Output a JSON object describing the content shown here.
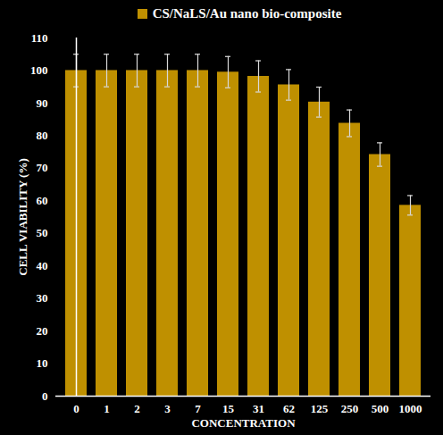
{
  "chart_data": {
    "type": "bar",
    "categories": [
      "0",
      "1",
      "2",
      "3",
      "7",
      "15",
      "31",
      "62",
      "125",
      "250",
      "500",
      "1000"
    ],
    "series": [
      {
        "name": "CS/NaLS/Au nano bio-composite",
        "color": "#bf9000",
        "values": [
          100,
          100,
          100,
          100,
          100,
          99.5,
          98.2,
          95.6,
          90.3,
          83.8,
          74.2,
          58.6
        ],
        "errors": [
          5,
          5,
          5,
          5,
          5,
          4.8,
          4.8,
          4.7,
          4.6,
          4.1,
          3.6,
          3.0
        ]
      }
    ],
    "x_label": "CONCENTRATION",
    "y_label": "CELL VIABILITY (%)",
    "ylim": [
      0,
      110
    ],
    "yticks": [
      0,
      10,
      20,
      30,
      40,
      50,
      60,
      70,
      80,
      90,
      100,
      110
    ],
    "legend": "top",
    "grid": false
  }
}
